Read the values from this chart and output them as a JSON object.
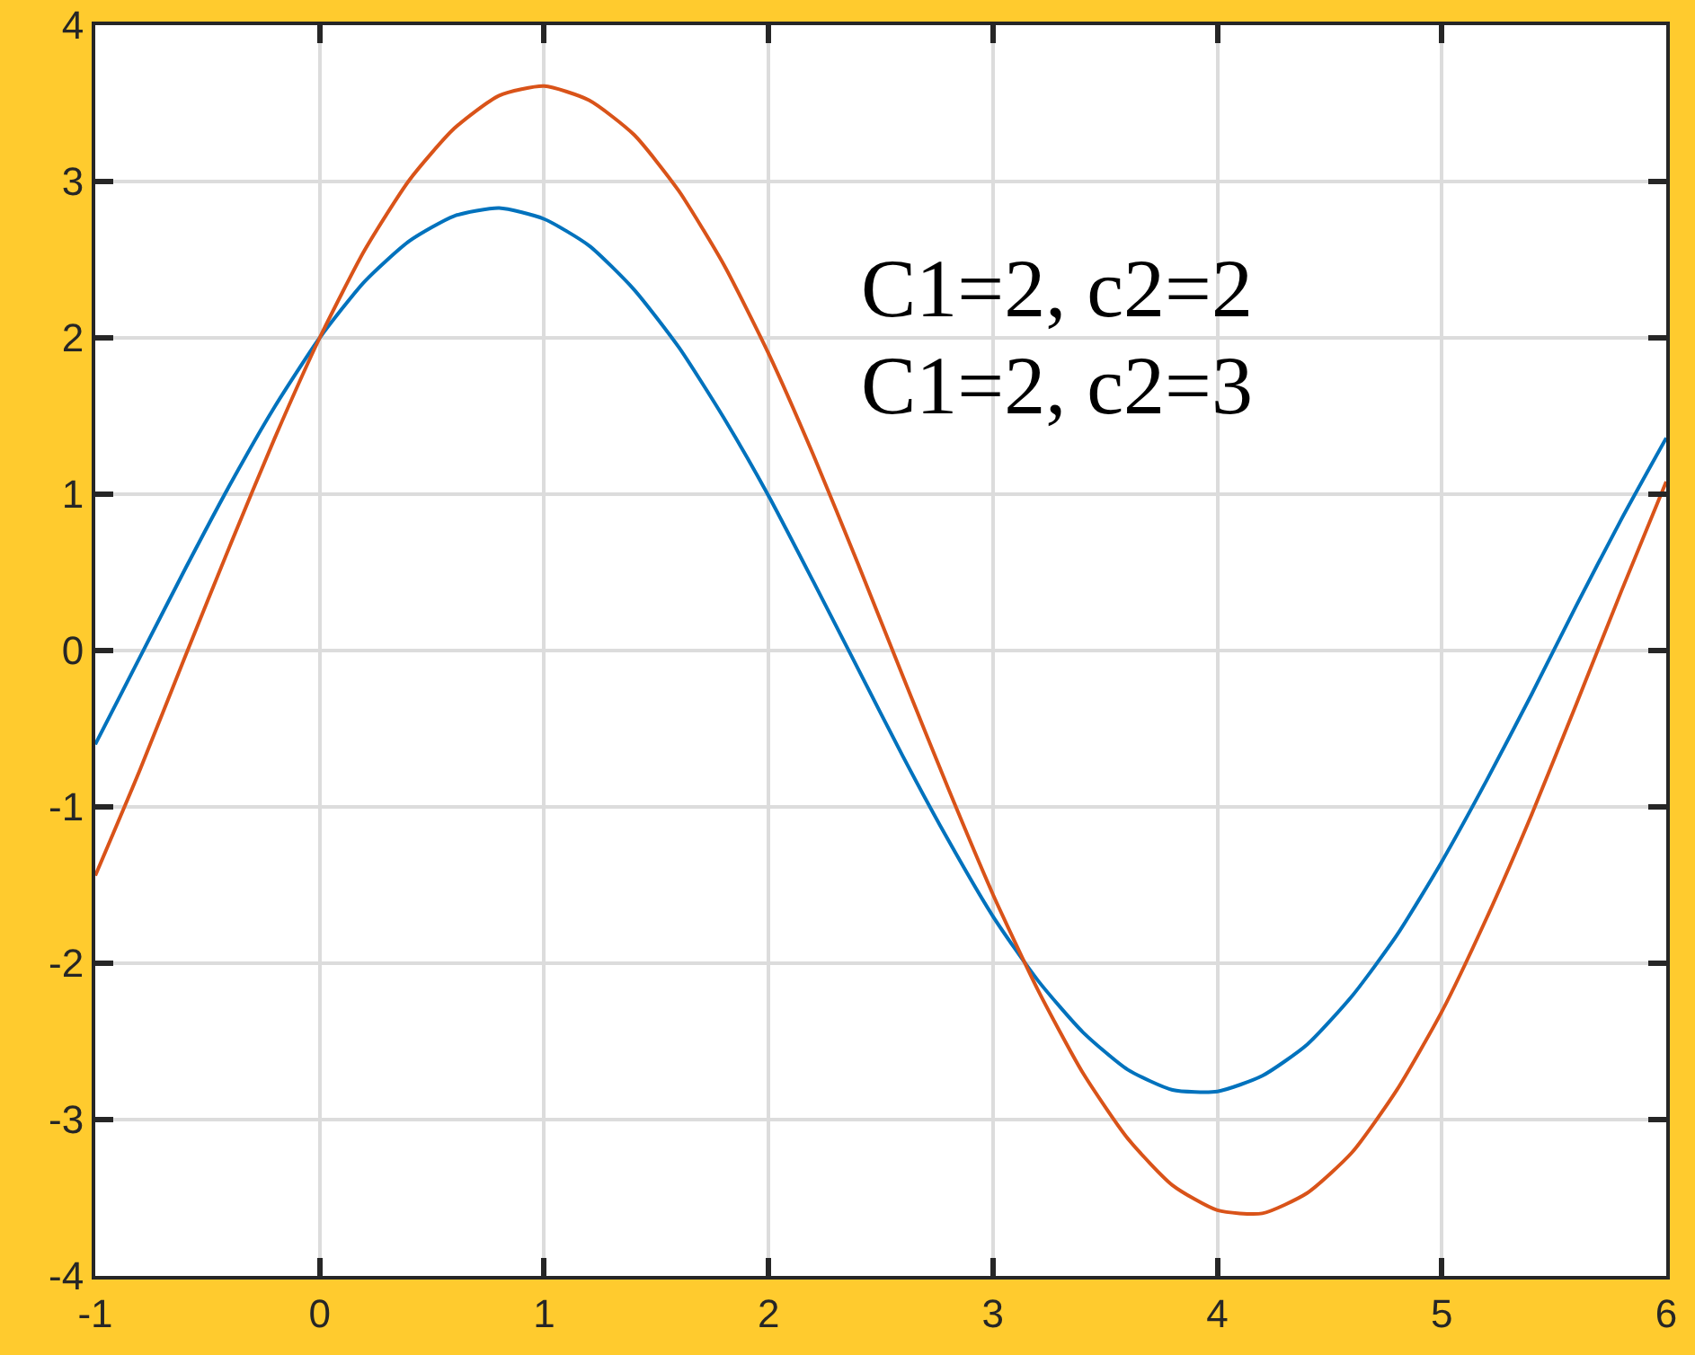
{
  "chart_data": {
    "type": "line",
    "x": [
      -1.0,
      -0.8,
      -0.6,
      -0.4,
      -0.2,
      0.0,
      0.2,
      0.4,
      0.6,
      0.8,
      1.0,
      1.2,
      1.4,
      1.6,
      1.8,
      2.0,
      2.2,
      2.4,
      2.6,
      2.8,
      3.0,
      3.2,
      3.4,
      3.6,
      3.8,
      4.0,
      4.2,
      4.4,
      4.6,
      4.8,
      5.0,
      5.2,
      5.4,
      5.6,
      5.8,
      6.0
    ],
    "series": [
      {
        "color": "#0072bd",
        "values": [
          -0.6,
          -0.04,
          0.52,
          1.06,
          1.56,
          2.0,
          2.36,
          2.62,
          2.78,
          2.83,
          2.76,
          2.59,
          2.31,
          1.94,
          1.49,
          0.99,
          0.44,
          -0.12,
          -0.68,
          -1.21,
          -1.7,
          -2.11,
          -2.44,
          -2.68,
          -2.81,
          -2.82,
          -2.72,
          -2.52,
          -2.21,
          -1.82,
          -1.35,
          -0.83,
          -0.28,
          0.29,
          0.84,
          1.36
        ]
      },
      {
        "color": "#d95319",
        "values": [
          -1.44,
          -0.76,
          -0.04,
          0.67,
          1.36,
          2.0,
          2.56,
          3.01,
          3.34,
          3.55,
          3.61,
          3.52,
          3.3,
          2.94,
          2.47,
          1.9,
          1.25,
          0.55,
          -0.17,
          -0.88,
          -1.56,
          -2.17,
          -2.7,
          -3.12,
          -3.42,
          -3.58,
          -3.6,
          -3.47,
          -3.21,
          -2.81,
          -2.31,
          -1.71,
          -1.05,
          -0.34,
          0.38,
          1.08
        ]
      }
    ],
    "xlim": [
      -1,
      6
    ],
    "ylim": [
      -4,
      4
    ],
    "xticks": [
      -1,
      0,
      1,
      2,
      3,
      4,
      5,
      6
    ],
    "yticks": [
      -4,
      -3,
      -2,
      -1,
      0,
      1,
      2,
      3,
      4
    ],
    "grid": true,
    "marker": "none",
    "line_style": "solid",
    "annotations": [
      "C1=2, c2=2",
      "C1=2, c2=3"
    ]
  }
}
